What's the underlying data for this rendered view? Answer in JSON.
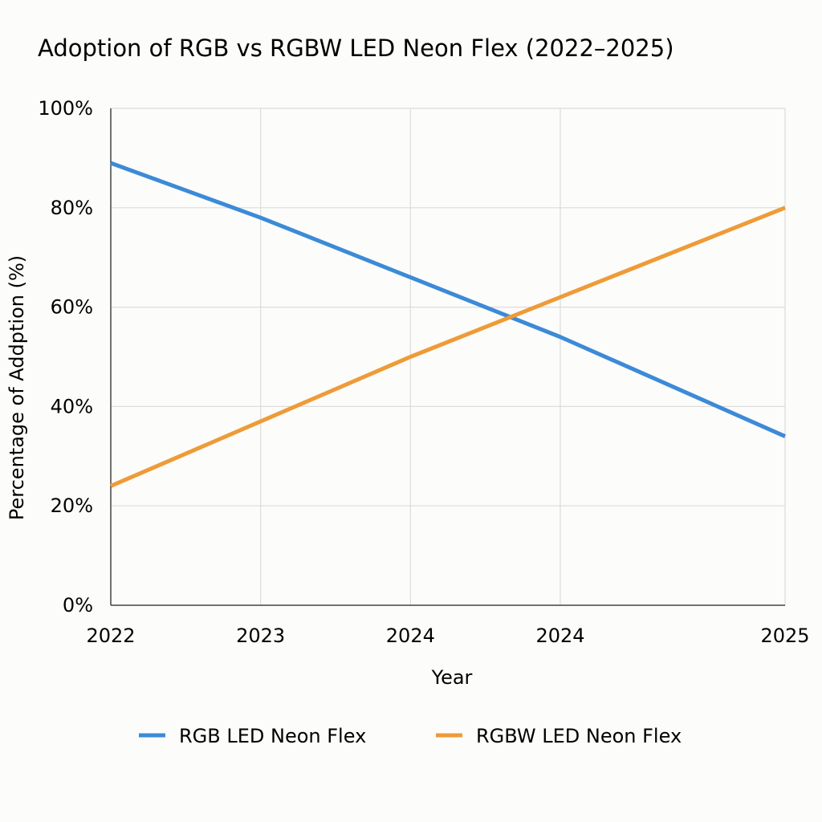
{
  "chart_data": {
    "type": "line",
    "title": "Adoption of RGB vs RGBW LED Neon Flex (2022–2025)",
    "xlabel": "Year",
    "ylabel": "Percentage of Addption (%)",
    "categories": [
      "2022",
      "2023",
      "2024",
      "2024",
      "2025"
    ],
    "x": [
      0,
      1,
      2,
      3,
      4.5
    ],
    "ylim": [
      0,
      100
    ],
    "yticks": [
      0,
      20,
      40,
      60,
      80,
      100
    ],
    "ytick_labels": [
      "0%",
      "20%",
      "40%",
      "60%",
      "80%",
      "100%"
    ],
    "grid": true,
    "legend_position": "bottom",
    "series": [
      {
        "name": "RGB LED Neon Flex",
        "color": "#3c8ad8",
        "values": [
          89,
          78,
          66,
          54,
          34
        ]
      },
      {
        "name": "RGBW LED Neon Flex",
        "color": "#ee9b38",
        "values": [
          24,
          37,
          50,
          62,
          80
        ]
      }
    ]
  }
}
